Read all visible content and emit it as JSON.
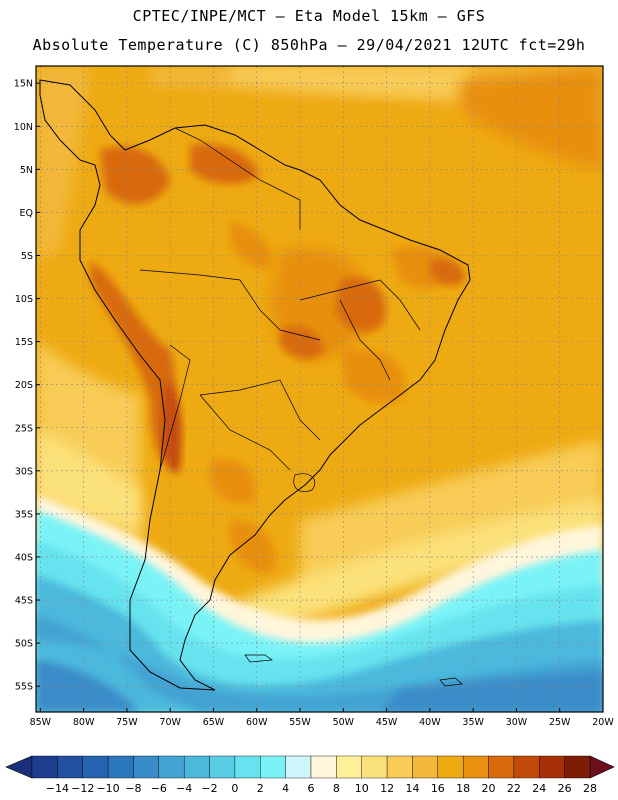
{
  "header": {
    "line1": "CPTEC/INPE/MCT –   Eta Model 15km – GFS",
    "line2": "Absolute Temperature (C) 850hPa – 29/04/2021 12UTC fct=29h"
  },
  "map": {
    "lat_labels": [
      "15N",
      "10N",
      "5N",
      "EQ",
      "5S",
      "10S",
      "15S",
      "20S",
      "25S",
      "30S",
      "35S",
      "40S",
      "45S",
      "50S",
      "55S"
    ],
    "lon_labels": [
      "85W",
      "80W",
      "75W",
      "70W",
      "65W",
      "60W",
      "55W",
      "50W",
      "45W",
      "40W",
      "35W",
      "30W",
      "25W",
      "20W"
    ],
    "lat_range": [
      17,
      -58
    ],
    "lon_range": [
      -85.5,
      -20
    ]
  },
  "colorbar": {
    "labels": [
      "-14",
      "-12",
      "-10",
      "-8",
      "-6",
      "-4",
      "-2",
      "0",
      "2",
      "4",
      "6",
      "8",
      "10",
      "12",
      "14",
      "16",
      "18",
      "20",
      "22",
      "24",
      "26",
      "28"
    ],
    "colors": [
      "#1f3d8f",
      "#23509f",
      "#2763ae",
      "#2b77bd",
      "#3a8cc8",
      "#43a3d3",
      "#4cb8dc",
      "#58cde6",
      "#66e3ee",
      "#7af3f7",
      "#cff6fb",
      "#fff6dc",
      "#fff19a",
      "#fbe17a",
      "#f8cc57",
      "#f3b83a",
      "#eeaa12",
      "#e89010",
      "#d86a0c",
      "#c44a09",
      "#a73008",
      "#7e1c07"
    ],
    "low_color": "#1b2e7a",
    "high_color": "#6e0f1e"
  }
}
